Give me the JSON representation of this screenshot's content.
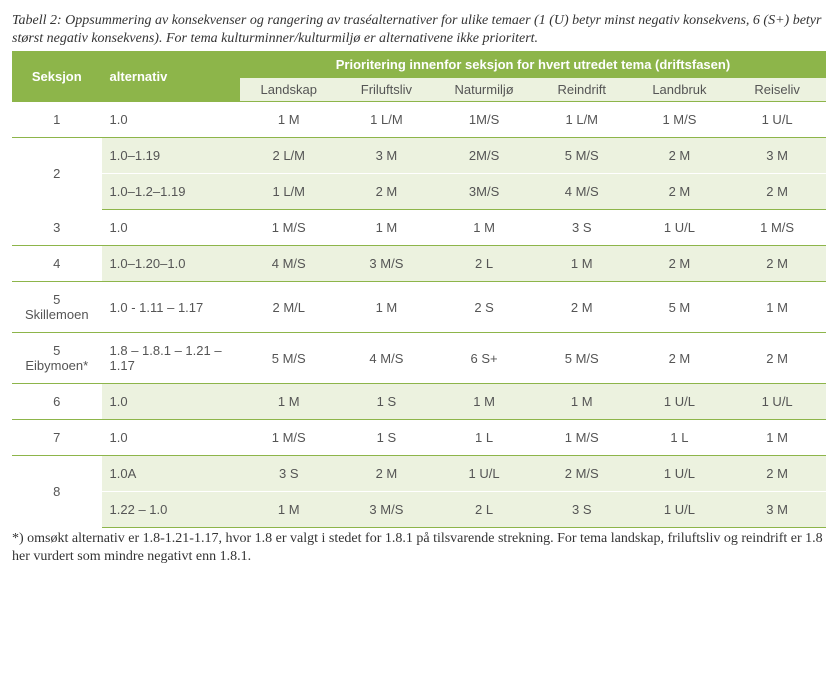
{
  "caption": "Tabell 2: Oppsummering av konsekvenser og rangering av traséalternativer for ulike temaer (1 (U) betyr minst negativ konsekvens, 6 (S+) betyr størst negativ konsekvens). For tema kulturminner/kulturmiljø er alternativene ikke prioritert.",
  "table": {
    "header": {
      "seksjon": "Seksjon",
      "alternativ": "alternativ",
      "band": "Prioritering innenfor seksjon for hvert utredet tema (driftsfasen)",
      "columns": [
        "Landskap",
        "Friluftsliv",
        "Naturmiljø",
        "Reindrift",
        "Landbruk",
        "Reiseliv"
      ]
    },
    "colors": {
      "band_bg": "#8db54a",
      "band_text": "#ffffff",
      "shade_bg": "#ecf2df",
      "border": "#8db54a",
      "text": "#555555"
    },
    "groups": [
      {
        "seksjon": "1",
        "shaded": false,
        "rows": [
          {
            "alt": "1.0",
            "cells": [
              "1 M",
              "1 L/M",
              "1M/S",
              "1 L/M",
              "1 M/S",
              "1 U/L"
            ]
          }
        ]
      },
      {
        "seksjon": "2",
        "shaded": true,
        "rows": [
          {
            "alt": "1.0–1.19",
            "cells": [
              "2 L/M",
              "3 M",
              "2M/S",
              "5 M/S",
              "2 M",
              "3 M"
            ]
          },
          {
            "alt": "1.0–1.2–1.19",
            "cells": [
              "1 L/M",
              "2 M",
              "3M/S",
              "4 M/S",
              "2 M",
              "2 M"
            ]
          }
        ]
      },
      {
        "seksjon": "3",
        "shaded": false,
        "rows": [
          {
            "alt": "1.0",
            "cells": [
              "1 M/S",
              "1 M",
              "1 M",
              "3 S",
              "1 U/L",
              "1 M/S"
            ]
          }
        ]
      },
      {
        "seksjon": "4",
        "shaded": true,
        "rows": [
          {
            "alt": "1.0–1.20–1.0",
            "cells": [
              "4 M/S",
              "3 M/S",
              "2 L",
              "1 M",
              "2 M",
              "2 M"
            ]
          }
        ]
      },
      {
        "seksjon": "5 Skillemoen",
        "shaded": false,
        "rows": [
          {
            "alt": "1.0 - 1.11 – 1.17",
            "cells": [
              "2 M/L",
              "1 M",
              "2 S",
              "2 M",
              "5 M",
              "1 M"
            ]
          }
        ]
      },
      {
        "seksjon": "5 Eibymoen*",
        "shaded": false,
        "rows": [
          {
            "alt": "1.8 – 1.8.1 – 1.21 – 1.17",
            "cells": [
              "5 M/S",
              "4 M/S",
              "6 S+",
              "5 M/S",
              "2 M",
              "2 M"
            ]
          }
        ]
      },
      {
        "seksjon": "6",
        "shaded": true,
        "rows": [
          {
            "alt": "1.0",
            "cells": [
              "1 M",
              "1 S",
              "1 M",
              "1 M",
              "1 U/L",
              "1 U/L"
            ]
          }
        ]
      },
      {
        "seksjon": "7",
        "shaded": false,
        "rows": [
          {
            "alt": "1.0",
            "cells": [
              "1 M/S",
              "1 S",
              "1 L",
              "1 M/S",
              "1 L",
              "1 M"
            ]
          }
        ]
      },
      {
        "seksjon": "8",
        "shaded": true,
        "rows": [
          {
            "alt": "1.0A",
            "cells": [
              "3 S",
              "2 M",
              "1 U/L",
              "2 M/S",
              "1 U/L",
              "2 M"
            ]
          },
          {
            "alt": "1.22 – 1.0",
            "cells": [
              "1 M",
              "3 M/S",
              "2 L",
              "3 S",
              "1 U/L",
              "3 M"
            ]
          }
        ]
      }
    ]
  },
  "footnote": "*) omsøkt alternativ er 1.8-1.21-1.17, hvor 1.8 er valgt i stedet for 1.8.1 på tilsvarende strekning. For tema landskap, friluftsliv og reindrift er 1.8 her vurdert som mindre negativt enn 1.8.1."
}
